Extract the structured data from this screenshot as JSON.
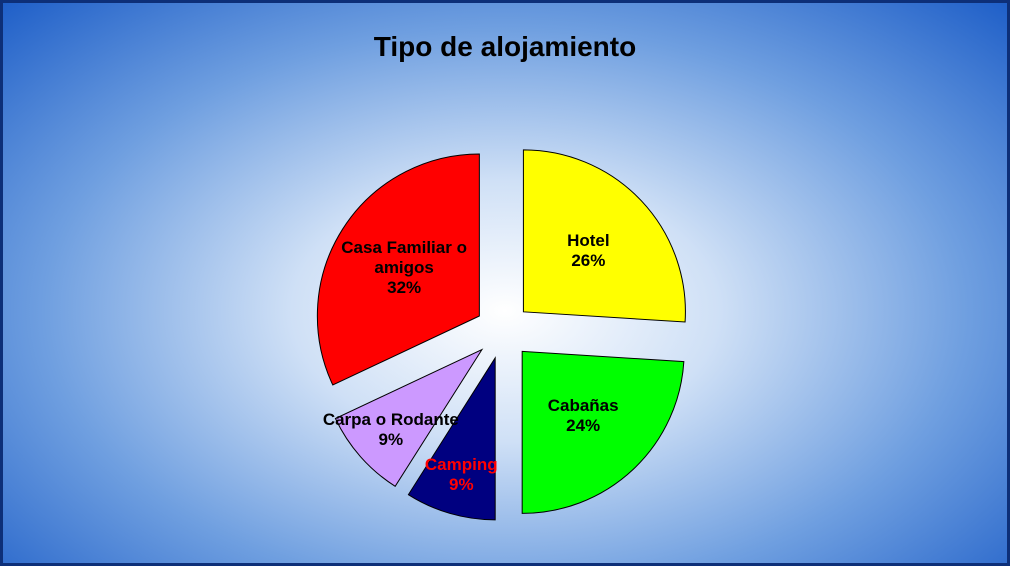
{
  "chart_data": {
    "type": "pie",
    "title": "Tipo de alojamiento",
    "categories": [
      "Hotel",
      "Cabañas",
      "Camping",
      "Carpa o Rodante",
      "Casa Familiar o amigos"
    ],
    "values": [
      26,
      24,
      9,
      9,
      32
    ],
    "value_labels": [
      "26%",
      "24%",
      "9%",
      "9%",
      "32%"
    ],
    "colors": [
      "#ffff00",
      "#00ff00",
      "#000080",
      "#cc99ff",
      "#ff0000"
    ],
    "label_colors": [
      "#000000",
      "#000000",
      "#ff0000",
      "#000000",
      "#000000"
    ]
  }
}
